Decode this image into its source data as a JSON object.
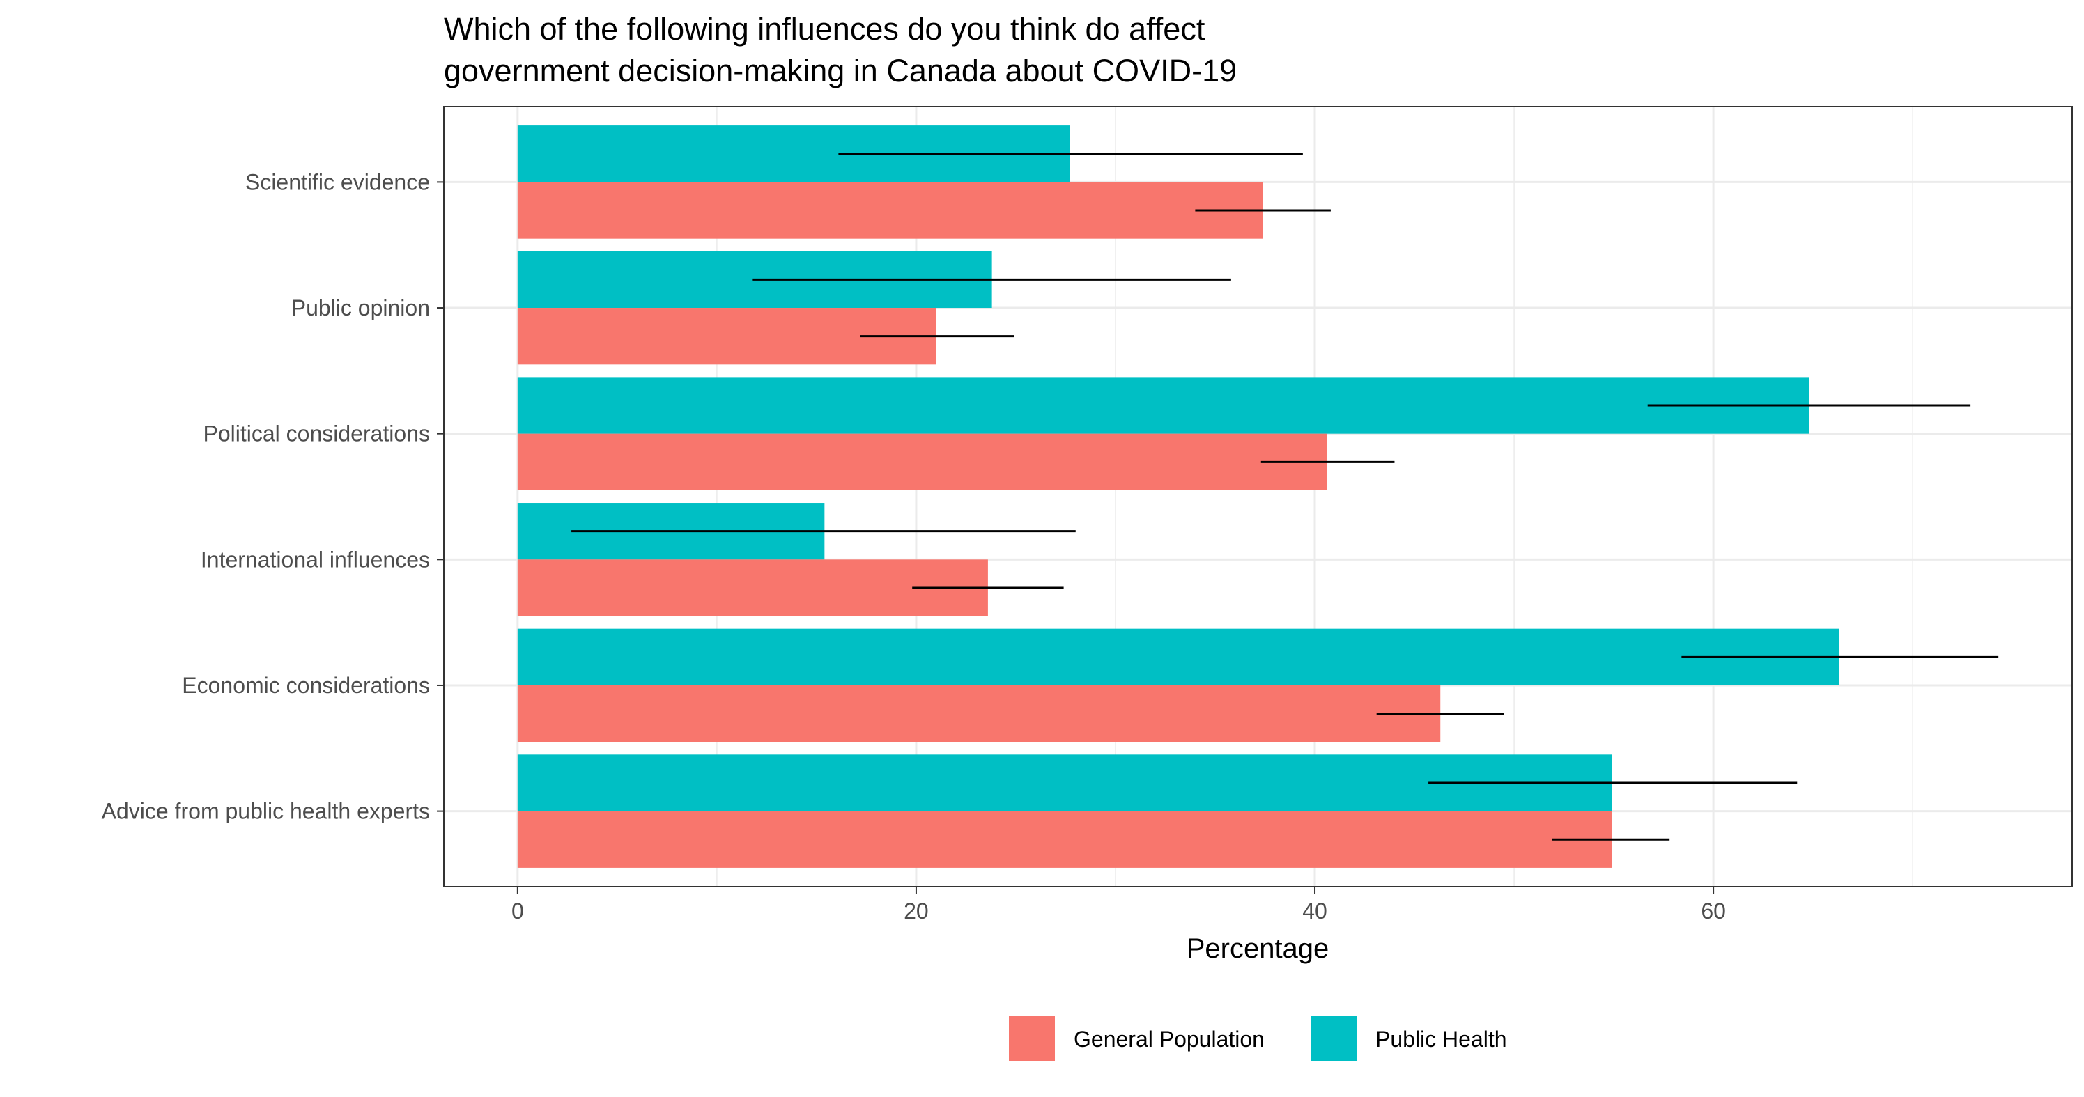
{
  "chart_data": {
    "type": "bar",
    "orientation": "horizontal",
    "title_lines": [
      "Which of the following influences do you think do affect",
      "government decision-making in Canada about COVID-19"
    ],
    "xlabel": "Percentage",
    "ylabel": "",
    "xlim": [
      -3.7,
      78.0
    ],
    "x_ticks": [
      "0",
      "20",
      "40",
      "60"
    ],
    "x_tick_values": [
      0,
      20,
      40,
      60
    ],
    "x_minor_gridlines": [
      10,
      30,
      50,
      70
    ],
    "grid": true,
    "legend_position": "bottom",
    "categories": [
      "Scientific evidence",
      "Public opinion",
      "Political considerations",
      "International influences",
      "Economic considerations",
      "Advice from public health experts"
    ],
    "series": [
      {
        "name": "General Population",
        "color": "#F8766D",
        "values": [
          37.4,
          21.0,
          40.6,
          23.6,
          46.3,
          54.9
        ],
        "error_low": [
          34.0,
          17.2,
          37.3,
          19.8,
          43.1,
          51.9
        ],
        "error_high": [
          40.8,
          24.9,
          44.0,
          27.4,
          49.5,
          57.8
        ]
      },
      {
        "name": "Public Health",
        "color": "#00BFC4",
        "values": [
          27.7,
          23.8,
          64.8,
          15.4,
          66.3,
          54.9
        ],
        "error_low": [
          16.1,
          11.8,
          56.7,
          2.7,
          58.4,
          45.7
        ],
        "error_high": [
          39.4,
          35.8,
          72.9,
          28.0,
          74.3,
          64.2
        ]
      }
    ]
  }
}
